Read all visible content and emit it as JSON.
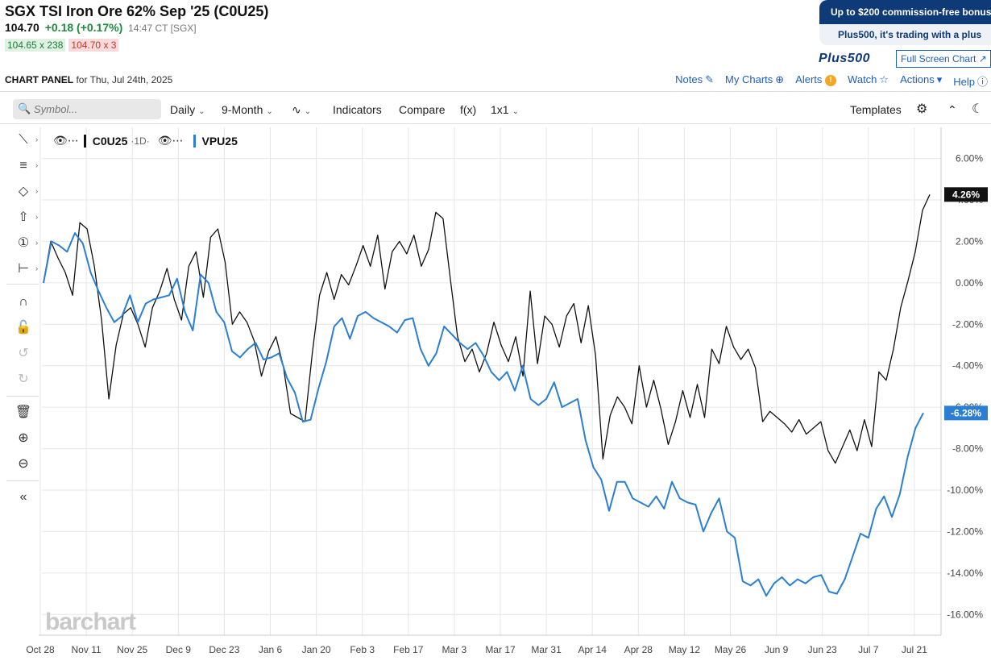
{
  "header": {
    "title": "SGX TSI Iron Ore 62% Sep '25 (C0U25)",
    "last": "104.70",
    "change": "+0.18 (+0.17%)",
    "time": "14:47 CT [SGX]",
    "bid": "104.65 x 238",
    "ask": "104.70 x 3"
  },
  "promo": {
    "line1": "Up to $200 commission-free bonus",
    "line2": "Plus500, it's trading with a plus",
    "logo": "Plus500",
    "fullscreen": "Full Screen Chart"
  },
  "panel": {
    "label": "CHART PANEL",
    "date": "for Thu, Jul 24th, 2025",
    "links": [
      "Notes",
      "My Charts",
      "Alerts",
      "Watch",
      "Actions",
      "Help"
    ]
  },
  "toolbar": {
    "symbol_placeholder": "Symbol...",
    "interval": "Daily",
    "range": "9-Month",
    "indicators": "Indicators",
    "compare": "Compare",
    "fx": "f(x)",
    "layout": "1x1",
    "templates": "Templates"
  },
  "legend": {
    "sym1": "C0U25",
    "period": "·1D·",
    "sym2": "VPU25"
  },
  "watermark": "barchart",
  "colors": {
    "series1": "#111111",
    "series2": "#2a7fd4",
    "accent": "#1f5fbf"
  },
  "chart_data": {
    "type": "line",
    "yunit": "%",
    "ylim": [
      -17,
      7.5
    ],
    "yticks": [
      "6.00%",
      "4.00%",
      "2.00%",
      "0.00%",
      "-2.00%",
      "-4.00%",
      "-6.00%",
      "-8.00%",
      "-10.00%",
      "-12.00%",
      "-14.00%",
      "-16.00%"
    ],
    "xticks": [
      "Oct 28",
      "Nov 11",
      "Nov 25",
      "Dec 9",
      "Dec 23",
      "Jan 6",
      "Jan 20",
      "Feb 3",
      "Feb 17",
      "Mar 3",
      "Mar 17",
      "Mar 31",
      "Apr 14",
      "Apr 28",
      "May 12",
      "May 26",
      "Jun 9",
      "Jun 23",
      "Jul 7",
      "Jul 21"
    ],
    "series": [
      {
        "name": "C0U25",
        "last_label": "4.26%",
        "values": [
          0.0,
          2.0,
          1.2,
          0.5,
          -0.6,
          2.9,
          2.6,
          0.8,
          -1.8,
          -5.6,
          -3.0,
          -1.5,
          -1.2,
          -2.0,
          -3.1,
          -1.2,
          -0.4,
          0.7,
          -0.8,
          -1.8,
          0.8,
          1.5,
          -0.7,
          2.2,
          2.6,
          1.0,
          -2.0,
          -1.4,
          -1.9,
          -2.8,
          -4.5,
          -3.3,
          -2.6,
          -4.0,
          -6.3,
          -6.5,
          -6.7,
          -3.4,
          -0.6,
          0.5,
          -0.8,
          0.4,
          -0.1,
          0.8,
          1.8,
          0.8,
          2.3,
          -0.3,
          1.5,
          2.0,
          1.4,
          2.3,
          0.8,
          1.6,
          3.4,
          3.1,
          0.2,
          -2.6,
          -3.8,
          -3.2,
          -4.3,
          -3.4,
          -1.9,
          -3.0,
          -3.8,
          -2.6,
          -4.5,
          -0.4,
          -3.9,
          -1.6,
          -2.0,
          -3.1,
          -1.6,
          -1.0,
          -2.9,
          -1.1,
          -3.5,
          -8.5,
          -6.4,
          -5.5,
          -6.0,
          -6.8,
          -4.0,
          -6.0,
          -4.7,
          -6.1,
          -7.8,
          -6.7,
          -5.2,
          -6.5,
          -4.9,
          -6.5,
          -3.2,
          -3.9,
          -2.1,
          -3.1,
          -3.7,
          -3.2,
          -4.1,
          -6.7,
          -6.2,
          -6.5,
          -6.8,
          -7.2,
          -6.6,
          -7.3,
          -7.0,
          -6.7,
          -8.1,
          -8.7,
          -7.9,
          -7.1,
          -8.1,
          -6.6,
          -7.9,
          -4.3,
          -4.7,
          -3.2,
          -1.2,
          0.1,
          1.5,
          3.5,
          4.26
        ]
      },
      {
        "name": "VPU25",
        "last_label": "-6.28%",
        "values": [
          0.0,
          2.0,
          1.8,
          1.5,
          2.4,
          1.9,
          0.5,
          -0.4,
          -1.2,
          -1.9,
          -1.6,
          -0.6,
          -1.9,
          -1.0,
          -0.8,
          -0.7,
          -0.6,
          0.2,
          -1.4,
          -2.3,
          0.4,
          0.0,
          -1.4,
          -1.9,
          -3.3,
          -3.6,
          -3.2,
          -2.9,
          -3.7,
          -3.6,
          -3.4,
          -4.6,
          -5.3,
          -6.7,
          -6.6,
          -5.1,
          -3.8,
          -2.1,
          -1.7,
          -2.7,
          -1.6,
          -1.4,
          -1.7,
          -1.9,
          -2.1,
          -2.4,
          -1.8,
          -1.7,
          -3.2,
          -4.0,
          -3.4,
          -2.1,
          -2.5,
          -2.9,
          -3.2,
          -2.9,
          -3.5,
          -4.3,
          -4.7,
          -4.3,
          -5.2,
          -4.0,
          -5.6,
          -5.9,
          -5.6,
          -4.8,
          -6.0,
          -5.8,
          -5.6,
          -7.6,
          -8.9,
          -9.5,
          -11.0,
          -9.6,
          -9.6,
          -10.4,
          -10.6,
          -10.8,
          -10.3,
          -10.9,
          -9.6,
          -10.4,
          -10.6,
          -10.7,
          -12.0,
          -11.1,
          -10.4,
          -12.0,
          -12.3,
          -14.4,
          -14.6,
          -14.3,
          -15.1,
          -14.5,
          -14.2,
          -14.6,
          -14.3,
          -14.5,
          -14.2,
          -14.1,
          -14.9,
          -15.0,
          -14.3,
          -13.2,
          -12.1,
          -12.3,
          -10.9,
          -10.3,
          -11.3,
          -10.2,
          -8.4,
          -7.0,
          -6.28
        ]
      }
    ]
  }
}
